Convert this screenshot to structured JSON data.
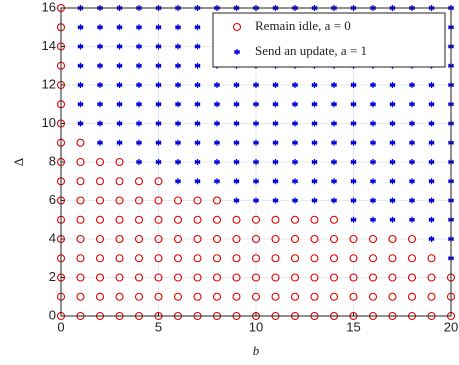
{
  "chart_data": {
    "type": "scatter",
    "xlabel": "b",
    "ylabel": "Δ",
    "xlim": [
      0,
      20
    ],
    "ylim": [
      0,
      16
    ],
    "xticks": [
      0,
      5,
      10,
      15,
      20
    ],
    "yticks": [
      0,
      2,
      4,
      6,
      8,
      10,
      12,
      14,
      16
    ],
    "grid": true,
    "legend": "upper right",
    "series": [
      {
        "name": "Remain idle, a = 0",
        "color": "#e00000",
        "marker": "circle",
        "x": [
          0,
          0,
          0,
          0,
          0,
          0,
          0,
          0,
          0,
          0,
          0,
          0,
          0,
          0,
          0,
          0,
          0,
          1,
          1,
          1,
          1,
          1,
          1,
          1,
          1,
          1,
          1,
          2,
          2,
          2,
          2,
          2,
          2,
          2,
          2,
          2,
          3,
          3,
          3,
          3,
          3,
          3,
          3,
          3,
          3,
          4,
          4,
          4,
          4,
          4,
          4,
          4,
          4,
          5,
          5,
          5,
          5,
          5,
          5,
          5,
          5,
          6,
          6,
          6,
          6,
          6,
          6,
          6,
          7,
          7,
          7,
          7,
          7,
          7,
          7,
          8,
          8,
          8,
          8,
          8,
          8,
          8,
          9,
          9,
          9,
          9,
          9,
          9,
          10,
          10,
          10,
          10,
          10,
          10,
          11,
          11,
          11,
          11,
          11,
          11,
          12,
          12,
          12,
          12,
          12,
          12,
          13,
          13,
          13,
          13,
          13,
          13,
          14,
          14,
          14,
          14,
          14,
          14,
          15,
          15,
          15,
          15,
          15,
          16,
          16,
          16,
          16,
          16,
          17,
          17,
          17,
          17,
          17,
          18,
          18,
          18,
          18,
          18,
          19,
          19,
          19,
          19,
          20,
          20,
          20
        ],
        "values": [
          0,
          1,
          2,
          3,
          4,
          5,
          6,
          7,
          8,
          9,
          10,
          11,
          12,
          13,
          14,
          15,
          16,
          0,
          1,
          2,
          3,
          4,
          5,
          6,
          7,
          8,
          9,
          0,
          1,
          2,
          3,
          4,
          5,
          6,
          7,
          8,
          0,
          1,
          2,
          3,
          4,
          5,
          6,
          7,
          8,
          0,
          1,
          2,
          3,
          4,
          5,
          6,
          7,
          0,
          1,
          2,
          3,
          4,
          5,
          6,
          7,
          0,
          1,
          2,
          3,
          4,
          5,
          6,
          0,
          1,
          2,
          3,
          4,
          5,
          6,
          0,
          1,
          2,
          3,
          4,
          5,
          6,
          0,
          1,
          2,
          3,
          4,
          5,
          0,
          1,
          2,
          3,
          4,
          5,
          0,
          1,
          2,
          3,
          4,
          5,
          0,
          1,
          2,
          3,
          4,
          5,
          0,
          1,
          2,
          3,
          4,
          5,
          0,
          1,
          2,
          3,
          4,
          5,
          0,
          1,
          2,
          3,
          4,
          0,
          1,
          2,
          3,
          4,
          0,
          1,
          2,
          3,
          4,
          0,
          1,
          2,
          3,
          4,
          0,
          1,
          2,
          3,
          0,
          1,
          2
        ]
      },
      {
        "name": "Send an update, a = 1",
        "color": "#0000e0",
        "marker": "star",
        "x": [
          1,
          1,
          1,
          1,
          1,
          1,
          1,
          2,
          2,
          2,
          2,
          2,
          2,
          2,
          2,
          3,
          3,
          3,
          3,
          3,
          3,
          3,
          3,
          4,
          4,
          4,
          4,
          4,
          4,
          4,
          4,
          4,
          5,
          5,
          5,
          5,
          5,
          5,
          5,
          5,
          5,
          6,
          6,
          6,
          6,
          6,
          6,
          6,
          6,
          6,
          6,
          7,
          7,
          7,
          7,
          7,
          7,
          7,
          7,
          7,
          7,
          8,
          8,
          8,
          8,
          8,
          8,
          8,
          8,
          8,
          8,
          9,
          9,
          9,
          9,
          9,
          9,
          9,
          9,
          9,
          9,
          9,
          10,
          10,
          10,
          10,
          10,
          10,
          10,
          10,
          10,
          10,
          10,
          11,
          11,
          11,
          11,
          11,
          11,
          11,
          11,
          11,
          11,
          11,
          12,
          12,
          12,
          12,
          12,
          12,
          12,
          12,
          12,
          12,
          12,
          13,
          13,
          13,
          13,
          13,
          13,
          13,
          13,
          13,
          13,
          13,
          14,
          14,
          14,
          14,
          14,
          14,
          14,
          14,
          14,
          14,
          14,
          15,
          15,
          15,
          15,
          15,
          15,
          15,
          15,
          15,
          15,
          15,
          15,
          16,
          16,
          16,
          16,
          16,
          16,
          16,
          16,
          16,
          16,
          16,
          16,
          17,
          17,
          17,
          17,
          17,
          17,
          17,
          17,
          17,
          17,
          17,
          17,
          18,
          18,
          18,
          18,
          18,
          18,
          18,
          18,
          18,
          18,
          18,
          18,
          19,
          19,
          19,
          19,
          19,
          19,
          19,
          19,
          19,
          19,
          19,
          19,
          19,
          20,
          20,
          20,
          20,
          20,
          20,
          20,
          20,
          20,
          20,
          20,
          20,
          20,
          20
        ],
        "values": [
          10,
          11,
          12,
          13,
          14,
          15,
          16,
          9,
          10,
          11,
          12,
          13,
          14,
          15,
          16,
          9,
          10,
          11,
          12,
          13,
          14,
          15,
          16,
          8,
          9,
          10,
          11,
          12,
          13,
          14,
          15,
          16,
          8,
          9,
          10,
          11,
          12,
          13,
          14,
          15,
          16,
          7,
          8,
          9,
          10,
          11,
          12,
          13,
          14,
          15,
          16,
          7,
          8,
          9,
          10,
          11,
          12,
          13,
          14,
          15,
          16,
          7,
          8,
          9,
          10,
          11,
          12,
          13,
          14,
          15,
          16,
          6,
          7,
          8,
          9,
          10,
          11,
          12,
          13,
          14,
          15,
          16,
          6,
          7,
          8,
          9,
          10,
          11,
          12,
          13,
          14,
          15,
          16,
          6,
          7,
          8,
          9,
          10,
          11,
          12,
          13,
          14,
          15,
          16,
          6,
          7,
          8,
          9,
          10,
          11,
          12,
          13,
          14,
          15,
          16,
          6,
          7,
          8,
          9,
          10,
          11,
          12,
          13,
          14,
          15,
          16,
          6,
          7,
          8,
          9,
          10,
          11,
          12,
          13,
          14,
          15,
          16,
          5,
          6,
          7,
          8,
          9,
          10,
          11,
          12,
          13,
          14,
          15,
          16,
          5,
          6,
          7,
          8,
          9,
          10,
          11,
          12,
          13,
          14,
          15,
          16,
          5,
          6,
          7,
          8,
          9,
          10,
          11,
          12,
          13,
          14,
          15,
          16,
          5,
          6,
          7,
          8,
          9,
          10,
          11,
          12,
          13,
          14,
          15,
          16,
          4,
          5,
          6,
          7,
          8,
          9,
          10,
          11,
          12,
          13,
          14,
          15,
          16,
          3,
          4,
          5,
          6,
          7,
          8,
          9,
          10,
          11,
          12,
          13,
          14,
          15,
          16
        ]
      }
    ]
  }
}
